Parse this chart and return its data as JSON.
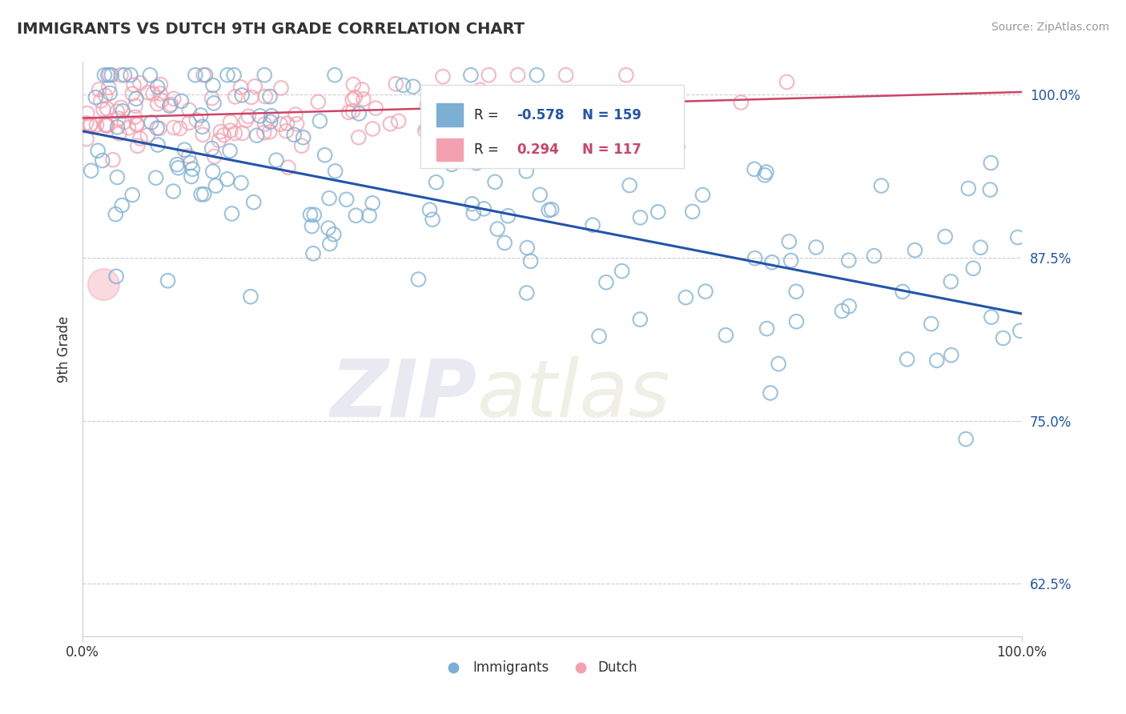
{
  "title": "IMMIGRANTS VS DUTCH 9TH GRADE CORRELATION CHART",
  "source": "Source: ZipAtlas.com",
  "ylabel": "9th Grade",
  "ytick_labels": [
    "62.5%",
    "75.0%",
    "87.5%",
    "100.0%"
  ],
  "ytick_values": [
    0.625,
    0.75,
    0.875,
    1.0
  ],
  "xlim": [
    0.0,
    1.0
  ],
  "ylim": [
    0.585,
    1.025
  ],
  "legend_immigrants": "Immigrants",
  "legend_dutch": "Dutch",
  "R_immigrants": -0.578,
  "N_immigrants": 159,
  "R_dutch": 0.294,
  "N_dutch": 117,
  "color_immigrants": "#7BAFD4",
  "color_dutch": "#F4A0B0",
  "color_trend_immigrants": "#2255AA",
  "color_trend_dutch": "#CC4466",
  "background_color": "#FFFFFF",
  "trend_imm_x0": 0.0,
  "trend_imm_y0": 0.972,
  "trend_imm_x1": 1.0,
  "trend_imm_y1": 0.832,
  "trend_dut_x0": 0.0,
  "trend_dut_y0": 0.982,
  "trend_dut_x1": 1.0,
  "trend_dut_y1": 1.002
}
